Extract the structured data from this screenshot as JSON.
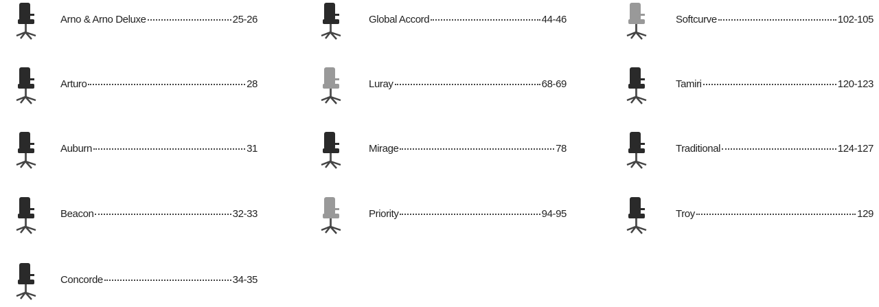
{
  "columns": [
    {
      "entries": [
        {
          "name": "Arno & Arno Deluxe",
          "pages": "25-26"
        },
        {
          "name": "Arturo",
          "pages": "28"
        },
        {
          "name": "Auburn",
          "pages": "31"
        },
        {
          "name": "Beacon",
          "pages": "32-33"
        },
        {
          "name": "Concorde",
          "pages": "34-35"
        }
      ]
    },
    {
      "entries": [
        {
          "name": "Global Accord",
          "pages": "44-46"
        },
        {
          "name": "Luray",
          "pages": "68-69"
        },
        {
          "name": "Mirage",
          "pages": "78"
        },
        {
          "name": "Priority",
          "pages": "94-95"
        }
      ]
    },
    {
      "entries": [
        {
          "name": "Softcurve",
          "pages": "102-105"
        },
        {
          "name": "Tamiri",
          "pages": "120-123"
        },
        {
          "name": "Traditional",
          "pages": "124-127"
        },
        {
          "name": "Troy",
          "pages": "129"
        }
      ]
    }
  ]
}
